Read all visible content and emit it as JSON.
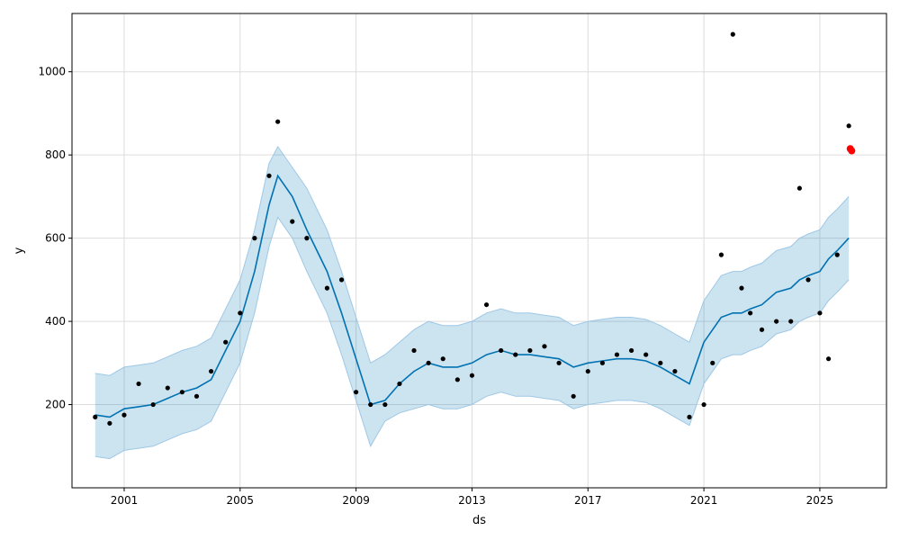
{
  "chart_data": {
    "type": "scatter",
    "title": "",
    "xlabel": "ds",
    "ylabel": "y",
    "xlim": [
      1999.2,
      2027.3
    ],
    "ylim": [
      0,
      1140
    ],
    "x_ticks": [
      2001,
      2005,
      2009,
      2013,
      2017,
      2021,
      2025
    ],
    "y_ticks": [
      200,
      400,
      600,
      800,
      1000
    ],
    "grid": true,
    "legend": "none",
    "colors": {
      "observed": "#000000",
      "forecast_line": "#0072B2",
      "uncertainty_band": "#0072B2",
      "band_opacity": 0.2,
      "band_edge": "#9ec8e6",
      "highlight": "#ff0000",
      "grid": "#dddddd"
    },
    "series": [
      {
        "role": "observed",
        "kind": "scatter",
        "x": [
          2000.0,
          2000.5,
          2001.0,
          2001.5,
          2002.0,
          2002.5,
          2003.0,
          2003.5,
          2004.0,
          2004.5,
          2005.0,
          2005.5,
          2006.0,
          2006.3,
          2006.8,
          2007.3,
          2008.0,
          2008.5,
          2009.0,
          2009.5,
          2010.0,
          2010.5,
          2011.0,
          2011.5,
          2012.0,
          2012.5,
          2013.0,
          2013.5,
          2014.0,
          2014.5,
          2015.0,
          2015.5,
          2016.0,
          2016.5,
          2017.0,
          2017.5,
          2018.0,
          2018.5,
          2019.0,
          2019.5,
          2020.0,
          2020.5,
          2021.0,
          2021.3,
          2021.6,
          2022.0,
          2022.3,
          2022.6,
          2023.0,
          2023.5,
          2024.0,
          2024.3,
          2024.6,
          2025.0,
          2025.3,
          2025.6,
          2026.0
        ],
        "y": [
          170,
          155,
          175,
          250,
          200,
          240,
          230,
          220,
          280,
          350,
          420,
          600,
          750,
          880,
          640,
          600,
          480,
          500,
          230,
          200,
          200,
          250,
          330,
          300,
          310,
          260,
          270,
          440,
          330,
          320,
          330,
          340,
          300,
          220,
          280,
          300,
          320,
          330,
          320,
          300,
          280,
          170,
          200,
          300,
          560,
          1090,
          480,
          420,
          380,
          400,
          400,
          720,
          500,
          420,
          310,
          560,
          870
        ]
      },
      {
        "role": "forecast",
        "kind": "line",
        "x": [
          2000.0,
          2000.5,
          2001.0,
          2001.5,
          2002.0,
          2002.5,
          2003.0,
          2003.5,
          2004.0,
          2004.5,
          2005.0,
          2005.5,
          2006.0,
          2006.3,
          2006.8,
          2007.3,
          2008.0,
          2008.5,
          2009.0,
          2009.5,
          2010.0,
          2010.5,
          2011.0,
          2011.5,
          2012.0,
          2012.5,
          2013.0,
          2013.5,
          2014.0,
          2014.5,
          2015.0,
          2015.5,
          2016.0,
          2016.5,
          2017.0,
          2017.5,
          2018.0,
          2018.5,
          2019.0,
          2019.5,
          2020.0,
          2020.5,
          2021.0,
          2021.3,
          2021.6,
          2022.0,
          2022.3,
          2022.6,
          2023.0,
          2023.5,
          2024.0,
          2024.3,
          2024.6,
          2025.0,
          2025.3,
          2025.6,
          2026.0
        ],
        "y": [
          175,
          170,
          190,
          195,
          200,
          215,
          230,
          240,
          260,
          330,
          400,
          520,
          680,
          750,
          700,
          620,
          520,
          420,
          310,
          200,
          210,
          250,
          280,
          300,
          290,
          290,
          300,
          320,
          330,
          320,
          320,
          315,
          310,
          290,
          300,
          305,
          310,
          310,
          305,
          290,
          270,
          250,
          350,
          380,
          410,
          420,
          420,
          430,
          440,
          470,
          480,
          500,
          510,
          520,
          550,
          570,
          600
        ]
      },
      {
        "role": "upper_bound",
        "kind": "band",
        "x": [
          2000.0,
          2000.5,
          2001.0,
          2001.5,
          2002.0,
          2002.5,
          2003.0,
          2003.5,
          2004.0,
          2004.5,
          2005.0,
          2005.5,
          2006.0,
          2006.3,
          2006.8,
          2007.3,
          2008.0,
          2008.5,
          2009.0,
          2009.5,
          2010.0,
          2010.5,
          2011.0,
          2011.5,
          2012.0,
          2012.5,
          2013.0,
          2013.5,
          2014.0,
          2014.5,
          2015.0,
          2015.5,
          2016.0,
          2016.5,
          2017.0,
          2017.5,
          2018.0,
          2018.5,
          2019.0,
          2019.5,
          2020.0,
          2020.5,
          2021.0,
          2021.3,
          2021.6,
          2022.0,
          2022.3,
          2022.6,
          2023.0,
          2023.5,
          2024.0,
          2024.3,
          2024.6,
          2025.0,
          2025.3,
          2025.6,
          2026.0
        ],
        "y": [
          275,
          270,
          290,
          295,
          300,
          315,
          330,
          340,
          360,
          430,
          500,
          620,
          780,
          820,
          770,
          720,
          620,
          520,
          410,
          300,
          320,
          350,
          380,
          400,
          390,
          390,
          400,
          420,
          430,
          420,
          420,
          415,
          410,
          390,
          400,
          405,
          410,
          410,
          405,
          390,
          370,
          350,
          450,
          480,
          510,
          520,
          520,
          530,
          540,
          570,
          580,
          600,
          610,
          620,
          650,
          670,
          700
        ]
      },
      {
        "role": "lower_bound",
        "kind": "band",
        "x": [
          2000.0,
          2000.5,
          2001.0,
          2001.5,
          2002.0,
          2002.5,
          2003.0,
          2003.5,
          2004.0,
          2004.5,
          2005.0,
          2005.5,
          2006.0,
          2006.3,
          2006.8,
          2007.3,
          2008.0,
          2008.5,
          2009.0,
          2009.5,
          2010.0,
          2010.5,
          2011.0,
          2011.5,
          2012.0,
          2012.5,
          2013.0,
          2013.5,
          2014.0,
          2014.5,
          2015.0,
          2015.5,
          2016.0,
          2016.5,
          2017.0,
          2017.5,
          2018.0,
          2018.5,
          2019.0,
          2019.5,
          2020.0,
          2020.5,
          2021.0,
          2021.3,
          2021.6,
          2022.0,
          2022.3,
          2022.6,
          2023.0,
          2023.5,
          2024.0,
          2024.3,
          2024.6,
          2025.0,
          2025.3,
          2025.6,
          2026.0
        ],
        "y": [
          75,
          70,
          90,
          95,
          100,
          115,
          130,
          140,
          160,
          230,
          300,
          420,
          580,
          650,
          600,
          520,
          420,
          320,
          210,
          100,
          160,
          180,
          190,
          200,
          190,
          190,
          200,
          220,
          230,
          220,
          220,
          215,
          210,
          190,
          200,
          205,
          210,
          210,
          205,
          190,
          170,
          150,
          250,
          280,
          310,
          320,
          320,
          330,
          340,
          370,
          380,
          400,
          410,
          420,
          450,
          470,
          500
        ]
      },
      {
        "role": "highlight",
        "kind": "scatter",
        "x": [
          2026.05,
          2026.1
        ],
        "y": [
          815,
          810
        ]
      }
    ]
  }
}
